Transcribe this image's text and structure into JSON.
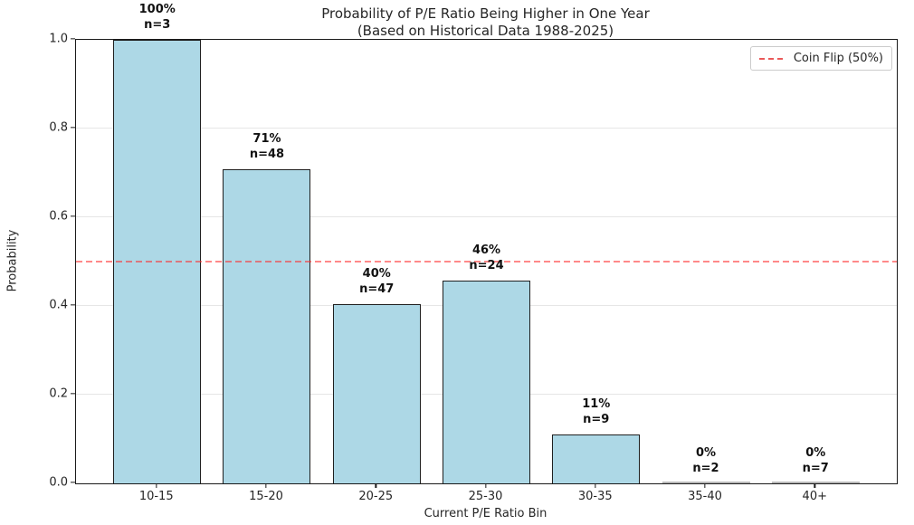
{
  "chart_data": {
    "type": "bar",
    "title": "Probability of P/E Ratio Being Higher in One Year",
    "subtitle": "(Based on Historical Data 1988-2025)",
    "xlabel": "Current P/E Ratio Bin",
    "ylabel": "Probability",
    "categories": [
      "10-15",
      "15-20",
      "20-25",
      "25-30",
      "30-35",
      "35-40",
      "40+"
    ],
    "values": [
      1.0,
      0.708,
      0.404,
      0.458,
      0.111,
      0.0,
      0.0
    ],
    "pct_labels": [
      "100%",
      "71%",
      "40%",
      "46%",
      "11%",
      "0%",
      "0%"
    ],
    "n_labels": [
      "n=3",
      "n=48",
      "n=47",
      "n=24",
      "n=9",
      "n=2",
      "n=7"
    ],
    "yticks": [
      "0.0",
      "0.2",
      "0.4",
      "0.6",
      "0.8",
      "1.0"
    ],
    "ylim": [
      0,
      1
    ],
    "grid": "horizontal",
    "reference_line": {
      "value": 0.5,
      "label": "Coin Flip (50%)",
      "color": "#E63C3C",
      "style": "dashed"
    },
    "legend_position": "upper right",
    "colors": {
      "bar_fill": "#ADD8E6",
      "bar_edge": "#1F1F1F",
      "grid": "#E6E6E6",
      "spine": "#1A1A1A"
    }
  }
}
